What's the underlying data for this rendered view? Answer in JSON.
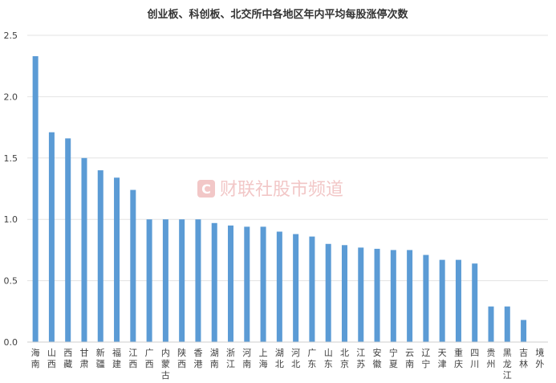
{
  "chart_data": {
    "type": "bar",
    "title": "创业板、科创板、北交所中各地区年内平均每股涨停次数",
    "categories": [
      "海南",
      "山西",
      "西藏",
      "甘肃",
      "新疆",
      "福建",
      "江西",
      "广西",
      "内蒙古",
      "陕西",
      "香港",
      "湖南",
      "浙江",
      "河南",
      "上海",
      "湖北",
      "河北",
      "广东",
      "山东",
      "北京",
      "江苏",
      "安徽",
      "宁夏",
      "云南",
      "辽宁",
      "天津",
      "重庆",
      "四川",
      "贵州",
      "黑龙江",
      "吉林",
      "境外"
    ],
    "values": [
      2.33,
      1.71,
      1.66,
      1.5,
      1.4,
      1.34,
      1.24,
      1.0,
      1.0,
      1.0,
      1.0,
      0.97,
      0.95,
      0.94,
      0.94,
      0.9,
      0.88,
      0.86,
      0.8,
      0.79,
      0.77,
      0.76,
      0.75,
      0.75,
      0.71,
      0.67,
      0.67,
      0.64,
      0.29,
      0.29,
      0.18,
      0.0
    ],
    "ylim": [
      0,
      2.5
    ],
    "yticks": [
      "0.0",
      "0.5",
      "1.0",
      "1.5",
      "2.0",
      "2.5"
    ],
    "ytick_values": [
      0,
      0.5,
      1.0,
      1.5,
      2.0,
      2.5
    ],
    "bar_color": "#5b9bd5",
    "grid": true,
    "legend": "none"
  },
  "watermark": {
    "text": "财联社股市频道",
    "logo_letter": "C",
    "color": "#e8a3a3"
  }
}
